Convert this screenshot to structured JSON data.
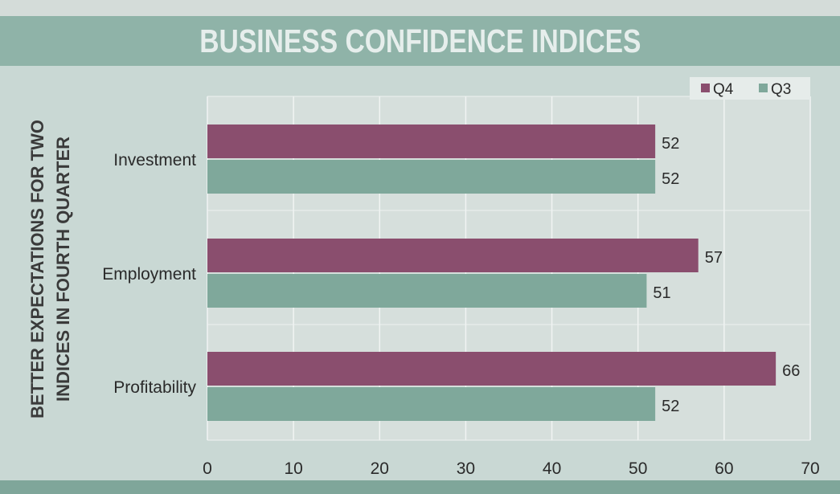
{
  "chart_data": {
    "type": "bar",
    "orientation": "horizontal",
    "title": "BUSINESS CONFIDENCE INDICES",
    "ylabel_lines": [
      "BETTER EXPECTATIONS FOR TWO",
      "INDICES IN FOURTH QUARTER"
    ],
    "categories": [
      "Investment",
      "Employment",
      "Profitability"
    ],
    "series": [
      {
        "name": "Q4",
        "values": [
          52,
          57,
          66
        ],
        "color": "#8a4e6e"
      },
      {
        "name": "Q3",
        "values": [
          52,
          51,
          52
        ],
        "color": "#7fa89b"
      }
    ],
    "xlim": [
      0,
      70
    ],
    "xticks": [
      0,
      10,
      20,
      30,
      40,
      50,
      60,
      70
    ],
    "grid": true,
    "legend": "top-right"
  }
}
